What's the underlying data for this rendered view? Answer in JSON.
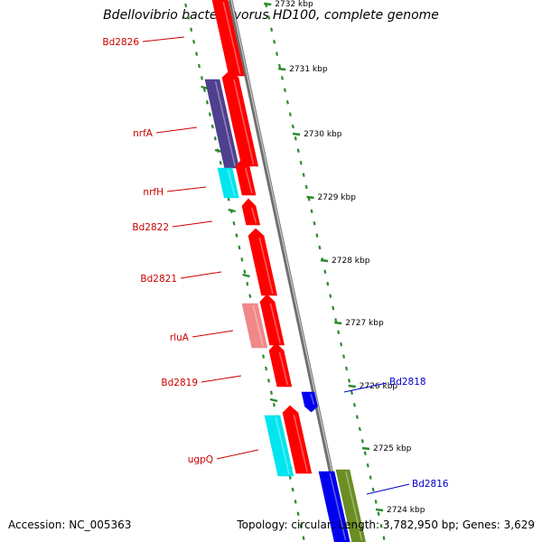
{
  "title": "Bdellovibrio bacteriovorus HD100, complete genome",
  "accession_text": "Accession: NC_005363",
  "topology_text": "Topology: circular; Length: 3,782,950 bp; Genes: 3,629",
  "colors": {
    "backbone": "#888888",
    "tick": "#2a8a2a",
    "gene_red": "#ff0000",
    "gene_pink": "#f08888",
    "gene_cyan": "#00e5ee",
    "gene_purple": "#4f3f8f",
    "gene_blue": "#0000ee",
    "gene_olive": "#6b8e23",
    "label_red": "#cc0000",
    "label_blue": "#0000cc"
  },
  "kbp_labels": [
    "2732 kbp",
    "2731 kbp",
    "2730 kbp",
    "2729 kbp",
    "2728 kbp",
    "2727 kbp",
    "2726 kbp",
    "2725 kbp",
    "2724 kbp"
  ],
  "gene_labels": [
    {
      "text": "Bd2826",
      "color": "red"
    },
    {
      "text": "nrfA",
      "color": "red"
    },
    {
      "text": "nrfH",
      "color": "red"
    },
    {
      "text": "Bd2822",
      "color": "red"
    },
    {
      "text": "Bd2821",
      "color": "red"
    },
    {
      "text": "rluA",
      "color": "red"
    },
    {
      "text": "Bd2819",
      "color": "red"
    },
    {
      "text": "ugpQ",
      "color": "red"
    },
    {
      "text": "Bd2818",
      "color": "blue"
    },
    {
      "text": "Bd2816",
      "color": "blue"
    }
  ]
}
